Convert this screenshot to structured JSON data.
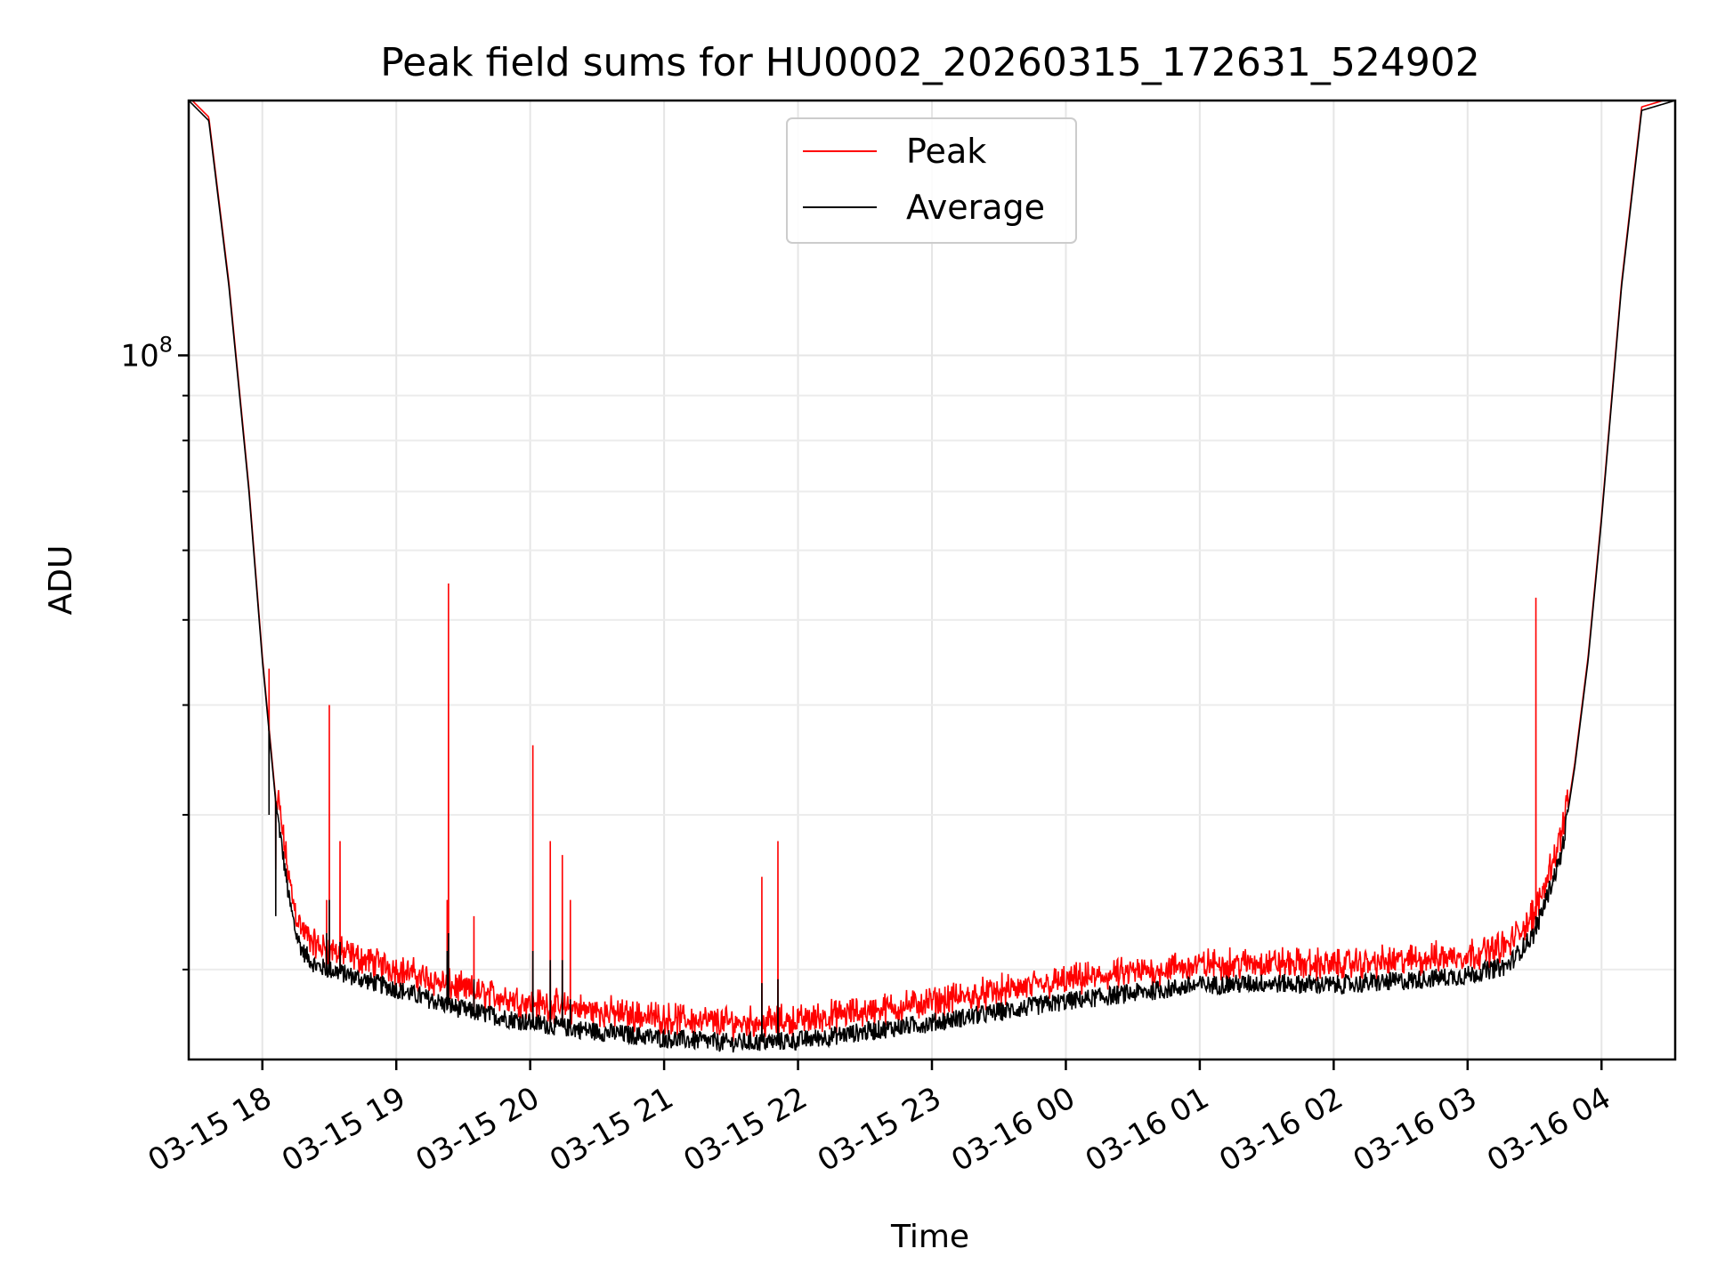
{
  "chart_data": {
    "type": "line",
    "title": "Peak field sums for HU0002_20260315_172631_524902",
    "xlabel": "Time",
    "ylabel": "ADU",
    "yscale": "log",
    "xlim_hours": [
      17.45,
      28.55
    ],
    "ylim": [
      15800000,
      195000000
    ],
    "x_tick_labels": [
      "03-15 18",
      "03-15 19",
      "03-15 20",
      "03-15 21",
      "03-15 22",
      "03-15 23",
      "03-16 00",
      "03-16 01",
      "03-16 02",
      "03-16 03",
      "03-16 04"
    ],
    "x_tick_hours": [
      18,
      19,
      20,
      21,
      22,
      23,
      24,
      25,
      26,
      27,
      28
    ],
    "y_tick_label_base": "10",
    "y_tick_label_exp": "8",
    "y_major_tick": 100000000,
    "y_minor_ticks": [
      20000000,
      30000000,
      40000000,
      50000000,
      60000000,
      70000000,
      80000000,
      90000000,
      200000000
    ],
    "grid": true,
    "legend_position": "upper-center",
    "series": [
      {
        "name": "Peak",
        "color": "#ff0000"
      },
      {
        "name": "Average",
        "color": "#000000"
      }
    ],
    "baseline_profile": {
      "hours": [
        17.45,
        17.6,
        17.75,
        17.9,
        18.0,
        18.1,
        18.2,
        18.25,
        18.3,
        18.4,
        18.6,
        19.0,
        19.5,
        20.0,
        20.5,
        21.0,
        21.5,
        22.0,
        22.5,
        23.0,
        23.5,
        24.0,
        24.5,
        25.0,
        25.5,
        26.0,
        26.5,
        27.0,
        27.3,
        27.5,
        27.7,
        27.8,
        27.9,
        28.0,
        28.15,
        28.3,
        28.55
      ],
      "average_adu": [
        195000000,
        185000000,
        120000000,
        70000000,
        45000000,
        31000000,
        24000000,
        22000000,
        21000000,
        20200000,
        19800000,
        19000000,
        18000000,
        17400000,
        17000000,
        16700000,
        16500000,
        16600000,
        17000000,
        17400000,
        17900000,
        18400000,
        18800000,
        19200000,
        19300000,
        19200000,
        19400000,
        19700000,
        20200000,
        22000000,
        27000000,
        34000000,
        45000000,
        65000000,
        120000000,
        190000000,
        195000000
      ]
    },
    "spikes": [
      {
        "hour": 18.05,
        "peak": 44000000,
        "average": 30000000
      },
      {
        "hour": 18.1,
        "peak": 26000000,
        "average": 23000000
      },
      {
        "hour": 18.48,
        "peak": 24000000,
        "average": 22000000
      },
      {
        "hour": 18.5,
        "peak": 40000000,
        "average": 24000000
      },
      {
        "hour": 18.58,
        "peak": 28000000,
        "average": 21500000
      },
      {
        "hour": 19.38,
        "peak": 24000000,
        "average": 21000000
      },
      {
        "hour": 19.39,
        "peak": 55000000,
        "average": 22000000
      },
      {
        "hour": 19.58,
        "peak": 23000000,
        "average": 19500000
      },
      {
        "hour": 20.02,
        "peak": 36000000,
        "average": 21000000
      },
      {
        "hour": 20.15,
        "peak": 28000000,
        "average": 20500000
      },
      {
        "hour": 20.24,
        "peak": 27000000,
        "average": 20500000
      },
      {
        "hour": 20.3,
        "peak": 24000000,
        "average": 18500000
      },
      {
        "hour": 21.73,
        "peak": 25500000,
        "average": 19300000
      },
      {
        "hour": 21.85,
        "peak": 28000000,
        "average": 19500000
      },
      {
        "hour": 27.48,
        "peak": 24000000,
        "average": 22000000
      },
      {
        "hour": 27.51,
        "peak": 53000000,
        "average": 23000000
      }
    ]
  }
}
